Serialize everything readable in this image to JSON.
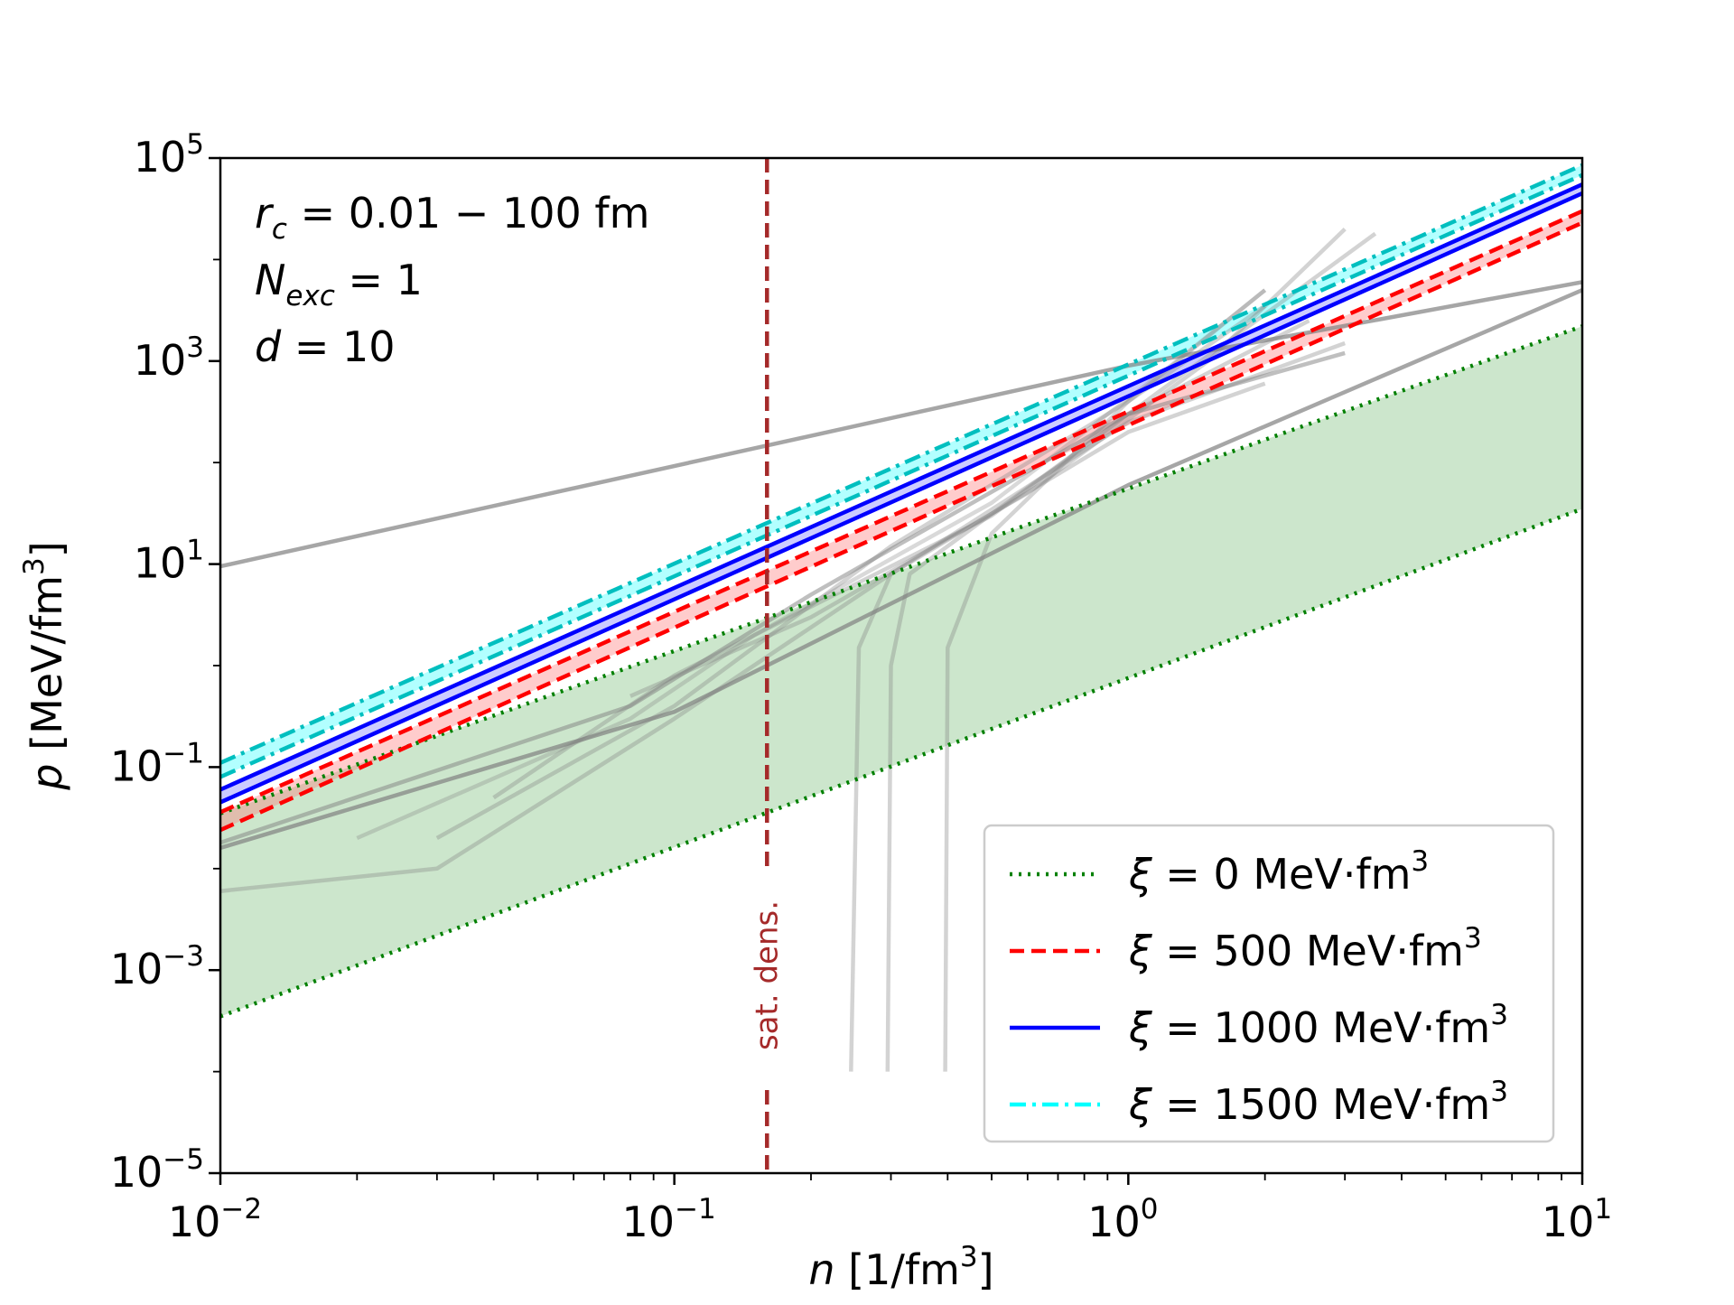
{
  "chart_data": {
    "type": "line",
    "xlabel": {
      "var": "n",
      "unit_pre": " [1/fm",
      "unit_sup": "3",
      "unit_post": "]"
    },
    "ylabel": {
      "var": "p",
      "unit_pre": " [MeV/fm",
      "unit_sup": "3",
      "unit_post": "]"
    },
    "xscale": "log",
    "yscale": "log",
    "xlim": [
      0.01,
      10
    ],
    "ylim": [
      1e-05,
      100000
    ],
    "x_ticks": [
      {
        "base": "10",
        "exp": "−2",
        "value": 0.01
      },
      {
        "base": "10",
        "exp": "−1",
        "value": 0.1
      },
      {
        "base": "10",
        "exp": "0",
        "value": 1
      },
      {
        "base": "10",
        "exp": "1",
        "value": 10
      }
    ],
    "y_ticks": [
      {
        "base": "10",
        "exp": "−5",
        "value": 1e-05
      },
      {
        "base": "10",
        "exp": "−3",
        "value": 0.001
      },
      {
        "base": "10",
        "exp": "−1",
        "value": 0.1
      },
      {
        "base": "10",
        "exp": "1",
        "value": 10
      },
      {
        "base": "10",
        "exp": "3",
        "value": 1000
      },
      {
        "base": "10",
        "exp": "5",
        "value": 100000
      }
    ],
    "annotation_lines": [
      {
        "var": "r",
        "sub": "c",
        "text": " = 0.01 − 100 fm"
      },
      {
        "var": "N",
        "sub": "exc",
        "text": " = 1"
      },
      {
        "var": "d",
        "sub": "",
        "text": " = 10"
      }
    ],
    "vertical_line": {
      "x": 0.16,
      "label": "sat. dens.",
      "color": "#a52a2a"
    },
    "legend_position": "lower-right",
    "series": [
      {
        "name": "0",
        "color": "#008000",
        "style": "dotted",
        "band_color": "#008000",
        "band_opacity": 0.2,
        "lower": {
          "x": [
            0.01,
            10
          ],
          "y": [
            0.00035,
            35
          ]
        },
        "upper": {
          "x": [
            0.01,
            10
          ],
          "y": [
            0.035,
            2200
          ]
        }
      },
      {
        "name": "500",
        "color": "#ff0000",
        "style": "dashed",
        "band_color": "#ff8080",
        "band_opacity": 0.4,
        "lower": {
          "x": [
            0.01,
            10
          ],
          "y": [
            0.024,
            23000
          ]
        },
        "upper": {
          "x": [
            0.01,
            10
          ],
          "y": [
            0.036,
            30000
          ]
        }
      },
      {
        "name": "1000",
        "color": "#0000ff",
        "style": "solid",
        "band_color": "#8080ff",
        "band_opacity": 0.4,
        "lower": {
          "x": [
            0.01,
            10
          ],
          "y": [
            0.045,
            45000
          ]
        },
        "upper": {
          "x": [
            0.01,
            10
          ],
          "y": [
            0.06,
            55000
          ]
        }
      },
      {
        "name": "1500",
        "color": "#00bfbf",
        "style": "dashdot",
        "band_color": "#00ffff",
        "band_opacity": 0.3,
        "lower": {
          "x": [
            0.01,
            10
          ],
          "y": [
            0.08,
            68000
          ]
        },
        "upper": {
          "x": [
            0.01,
            10
          ],
          "y": [
            0.11,
            85000
          ]
        }
      }
    ],
    "legend_entries": [
      {
        "symbol": "ξ",
        "text": " = 0 MeV·fm",
        "sup": "3",
        "color": "#008000",
        "style": "dotted"
      },
      {
        "symbol": "ξ",
        "text": " = 500 MeV·fm",
        "sup": "3",
        "color": "#ff0000",
        "style": "dashed"
      },
      {
        "symbol": "ξ",
        "text": " = 1000 MeV·fm",
        "sup": "3",
        "color": "#0000ff",
        "style": "solid"
      },
      {
        "symbol": "ξ",
        "text": " = 1500 MeV·fm",
        "sup": "3",
        "color": "#00ffff",
        "style": "dashdot"
      }
    ],
    "reference_curves": [
      {
        "x": [
          0.01,
          1.0,
          10
        ],
        "y": [
          9.5,
          900,
          6000
        ],
        "opacity": 0.7
      },
      {
        "x": [
          0.01,
          0.1,
          1.0,
          10
        ],
        "y": [
          0.016,
          0.35,
          60,
          5000
        ],
        "opacity": 0.7
      },
      {
        "x": [
          0.01,
          0.08,
          0.2,
          1.0,
          3.0
        ],
        "y": [
          0.018,
          0.4,
          5,
          300,
          1200
        ],
        "opacity": 0.5
      },
      {
        "x": [
          0.01,
          0.03,
          0.1,
          0.3,
          1.0,
          2.0
        ],
        "y": [
          0.006,
          0.01,
          0.3,
          8,
          200,
          600
        ],
        "opacity": 0.35
      },
      {
        "x": [
          0.03,
          0.1,
          0.3,
          1.0,
          2.0
        ],
        "y": [
          0.02,
          0.4,
          15,
          400,
          3500
        ],
        "opacity": 0.35
      },
      {
        "x": [
          0.04,
          0.1,
          0.5,
          1.0,
          3.5
        ],
        "y": [
          0.05,
          0.8,
          30,
          300,
          18000
        ],
        "opacity": 0.35
      },
      {
        "x": [
          0.08,
          0.2,
          0.6,
          1.5,
          3.0
        ],
        "y": [
          0.5,
          3,
          50,
          1000,
          20000
        ],
        "opacity": 0.35
      },
      {
        "x": [
          0.245,
          0.255,
          0.3,
          1.0,
          3.0
        ],
        "y": [
          0.0001,
          1.5,
          8,
          250,
          1500
        ],
        "opacity": 0.35
      },
      {
        "x": [
          0.295,
          0.3,
          0.33,
          1.0,
          2.5
        ],
        "y": [
          0.0001,
          1.0,
          8,
          300,
          2500
        ],
        "opacity": 0.35
      },
      {
        "x": [
          0.395,
          0.4,
          0.5,
          1.0,
          2.0
        ],
        "y": [
          0.0001,
          1.5,
          20,
          400,
          5000
        ],
        "opacity": 0.35
      },
      {
        "x": [
          0.02,
          0.08,
          0.15,
          0.5,
          1.2,
          2.0
        ],
        "y": [
          0.02,
          0.3,
          2,
          40,
          800,
          5000
        ],
        "opacity": 0.3
      }
    ]
  }
}
